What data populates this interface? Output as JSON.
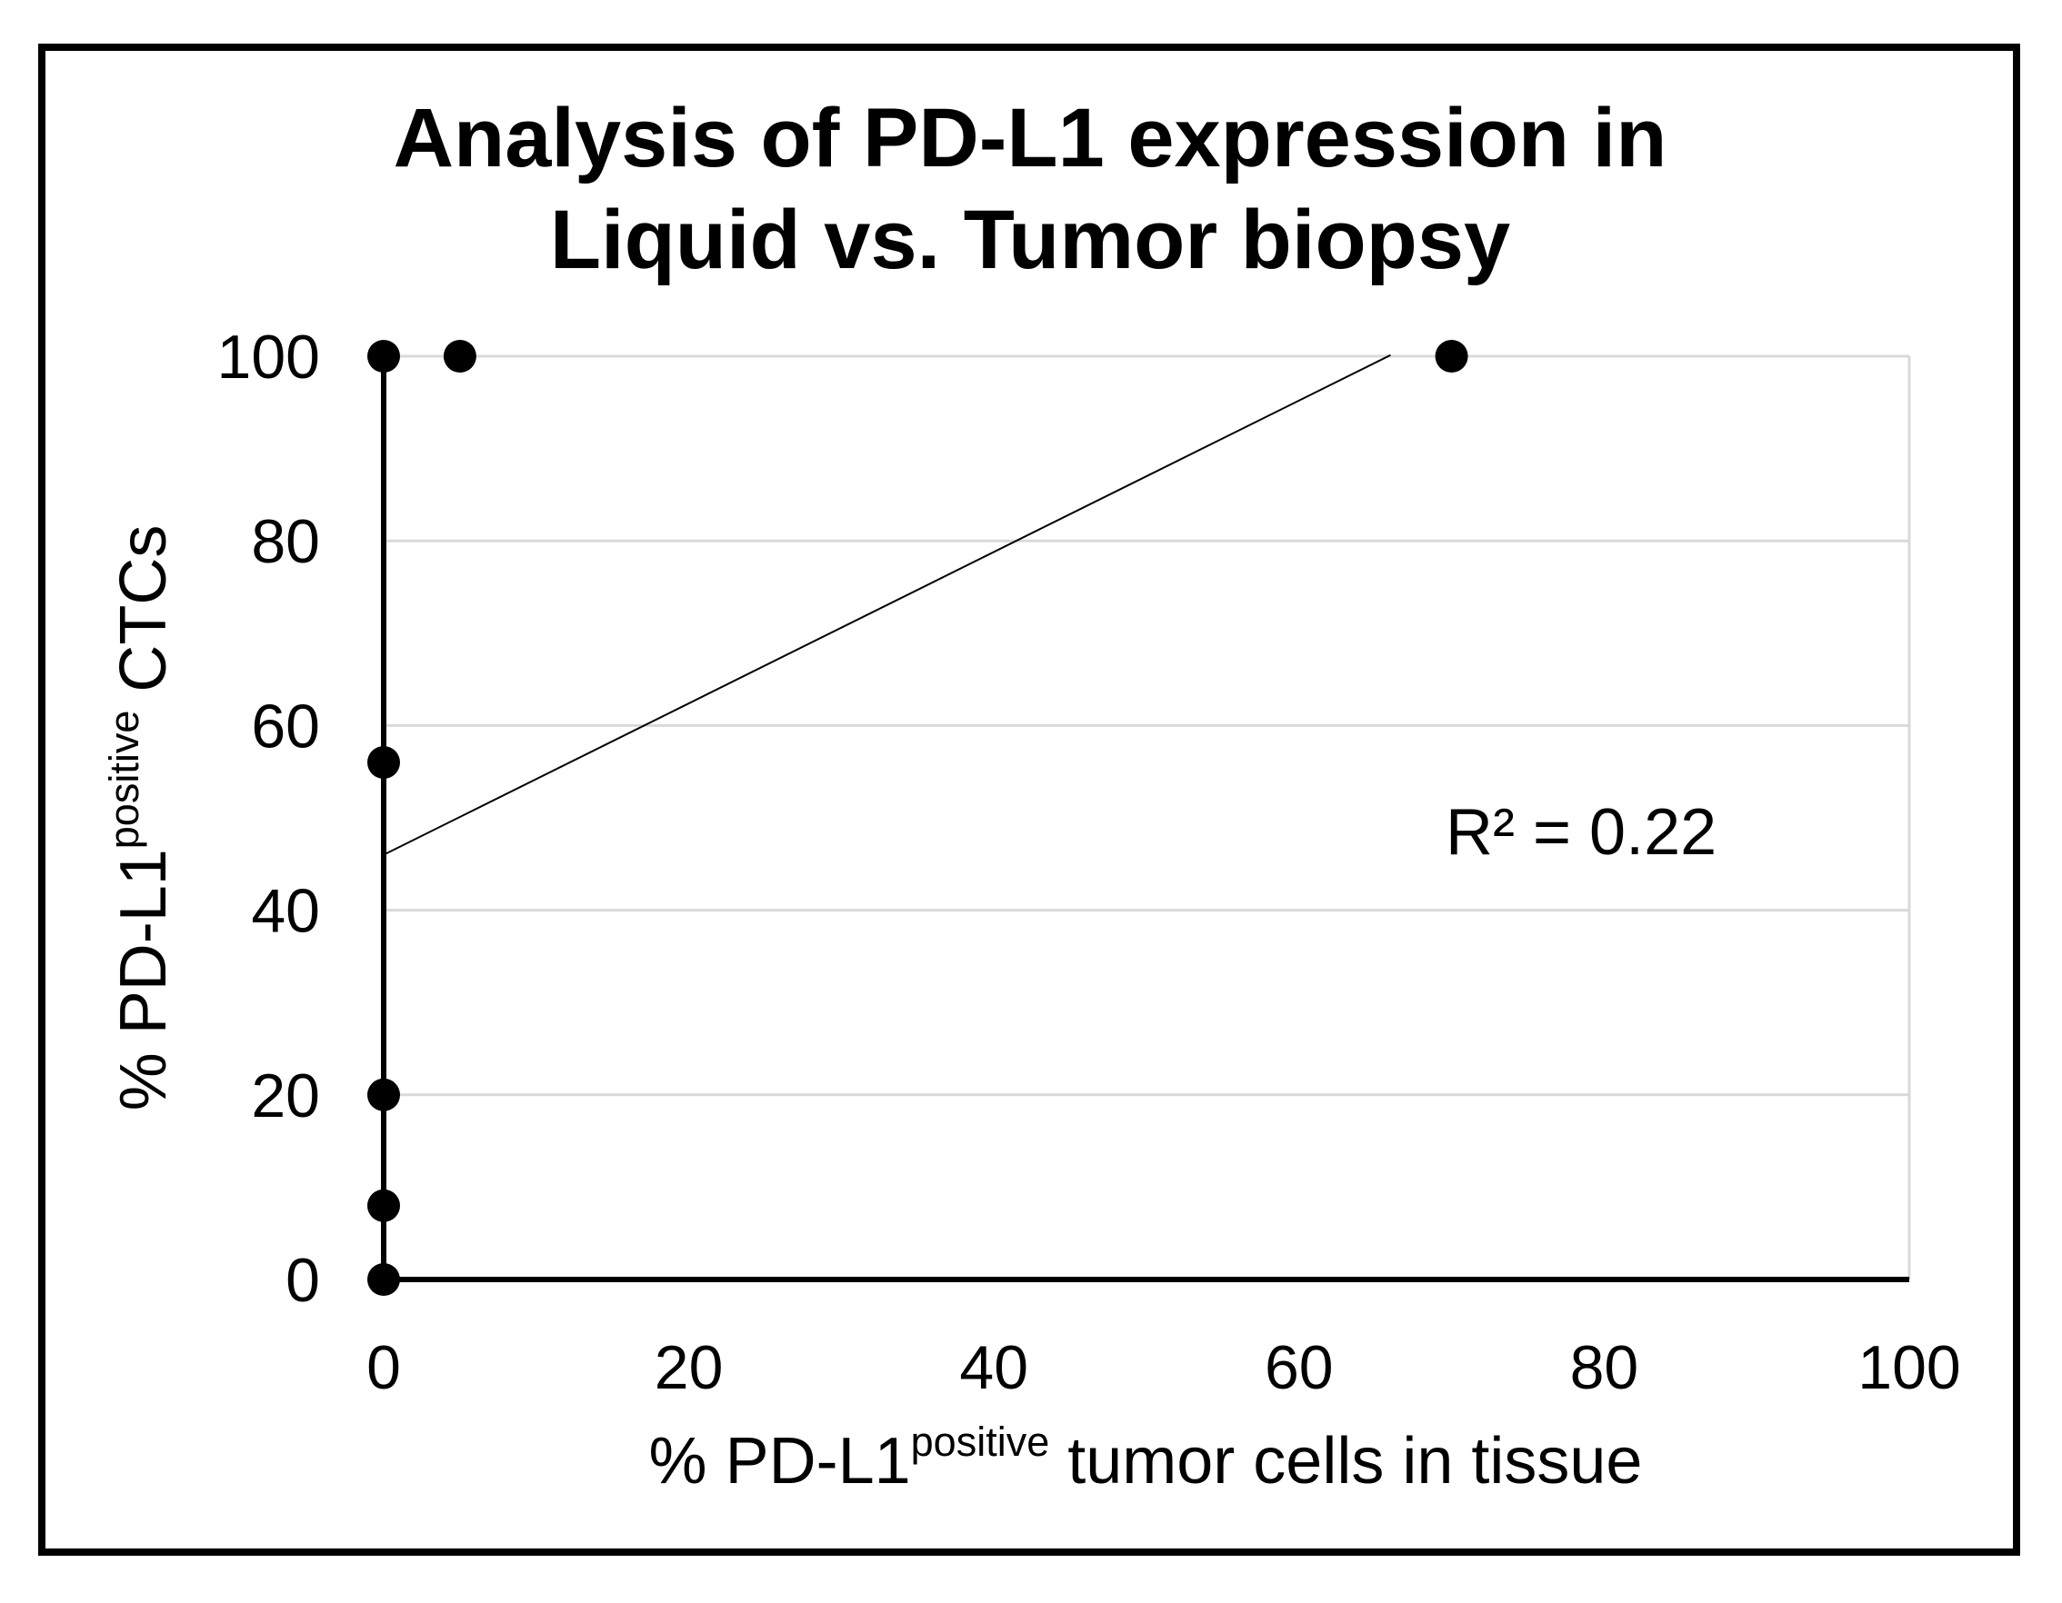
{
  "chart_data": {
    "type": "scatter",
    "title_lines": [
      "Analysis of PD-L1 expression in",
      "Liquid vs. Tumor biopsy"
    ],
    "xlabel": {
      "prefix": "% PD-L1",
      "superscript": "positive",
      "suffix": " tumor cells in tissue"
    },
    "ylabel": {
      "prefix": "% PD-L1",
      "superscript": "positive",
      "suffix": " CTCs"
    },
    "xlim": [
      0,
      100
    ],
    "ylim": [
      0,
      100
    ],
    "x_ticks": [
      "0",
      "20",
      "40",
      "60",
      "80",
      "100"
    ],
    "y_ticks": [
      "0",
      "20",
      "40",
      "60",
      "80",
      "100"
    ],
    "grid": true,
    "points": [
      {
        "x": 0,
        "y": 100
      },
      {
        "x": 5,
        "y": 100
      },
      {
        "x": 70,
        "y": 100
      },
      {
        "x": 0,
        "y": 56
      },
      {
        "x": 0,
        "y": 20
      },
      {
        "x": 0,
        "y": 8
      },
      {
        "x": 0,
        "y": 0
      }
    ],
    "trendline": {
      "type": "linear",
      "intercept": 46,
      "slope": 0.82,
      "x_range": [
        0,
        66
      ]
    },
    "annotation": "R² = 0.22",
    "colors": {
      "points": "#000000",
      "grid": "#d9d9d9",
      "axes": "#000000",
      "trendline": "#000000",
      "frame": "#000000"
    }
  }
}
